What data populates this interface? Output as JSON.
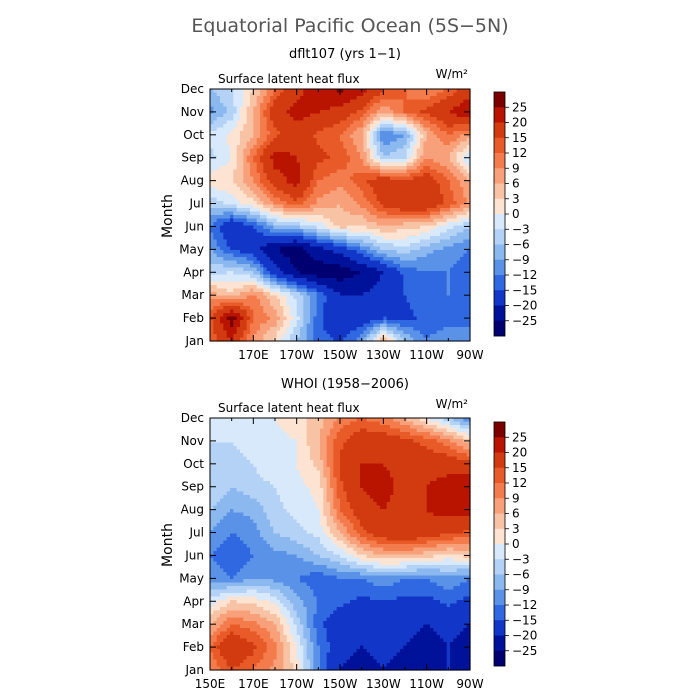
{
  "figure": {
    "title": "Equatorial Pacific Ocean (5S−5N)"
  },
  "colorbar": {
    "labels": [
      "25",
      "20",
      "15",
      "12",
      "9",
      "6",
      "3",
      "0",
      "−3",
      "−6",
      "−9",
      "−12",
      "−15",
      "−20",
      "−25"
    ],
    "colors": [
      "#7a0000",
      "#b81400",
      "#d23a10",
      "#e85a28",
      "#f47c4c",
      "#f7a07a",
      "#f8c2a4",
      "#fde3d2",
      "#d7e9fb",
      "#b4d2f5",
      "#8cb8f0",
      "#5a92e8",
      "#2f68e0",
      "#1236c8",
      "#00119a",
      "#000070"
    ]
  },
  "chart_data": [
    {
      "type": "heatmap",
      "title": "dflt107 (yrs 1−1)",
      "subtitle": "Surface latent heat flux",
      "units": "W/m²",
      "ylabel": "Month",
      "y_ticks": [
        "Jan",
        "Feb",
        "Mar",
        "Apr",
        "May",
        "Jun",
        "Jul",
        "Aug",
        "Sep",
        "Oct",
        "Nov",
        "Dec"
      ],
      "x_ticks": [
        "170E",
        "170W",
        "150W",
        "130W",
        "110W",
        "90W"
      ],
      "x_range": [
        "150E",
        "90W"
      ],
      "levels": [
        -25,
        -20,
        -15,
        -12,
        -9,
        -6,
        -3,
        0,
        3,
        6,
        9,
        12,
        15,
        20,
        25
      ],
      "lon": [
        150,
        160,
        170,
        180,
        190,
        200,
        210,
        220,
        230,
        240,
        250,
        260,
        270
      ],
      "months": [
        "Jan",
        "Feb",
        "Mar",
        "Apr",
        "May",
        "Jun",
        "Jul",
        "Aug",
        "Sep",
        "Oct",
        "Nov",
        "Dec"
      ],
      "values": [
        [
          12,
          20,
          8,
          2,
          -6,
          -14,
          -15,
          -10,
          6,
          -6,
          -12,
          -9,
          -10
        ],
        [
          14,
          28,
          12,
          8,
          -2,
          -14,
          -20,
          -18,
          -15,
          -16,
          -14,
          -14,
          -13
        ],
        [
          8,
          4,
          10,
          3,
          -4,
          -12,
          -20,
          -20,
          -18,
          -15,
          -13,
          -12,
          -14
        ],
        [
          -4,
          -3,
          -6,
          -18,
          -25,
          -28,
          -28,
          -25,
          -20,
          -14,
          -12,
          -12,
          -15
        ],
        [
          -9,
          -15,
          -18,
          -25,
          -28,
          -22,
          -18,
          -12,
          -6,
          -4,
          -8,
          -10,
          -12
        ],
        [
          -12,
          -20,
          -15,
          -8,
          -6,
          -2,
          4,
          3,
          6,
          4,
          3,
          -2,
          -6
        ],
        [
          -5,
          -2,
          2,
          9,
          14,
          8,
          6,
          10,
          16,
          20,
          20,
          14,
          8
        ],
        [
          2,
          3,
          9,
          18,
          22,
          12,
          10,
          14,
          18,
          16,
          18,
          12,
          6
        ],
        [
          -4,
          0,
          12,
          22,
          20,
          16,
          14,
          9,
          -6,
          -3,
          9,
          6,
          -4
        ],
        [
          -2,
          1,
          6,
          14,
          18,
          14,
          12,
          6,
          -12,
          -9,
          6,
          12,
          8
        ],
        [
          -10,
          -5,
          6,
          18,
          22,
          20,
          18,
          14,
          6,
          12,
          16,
          20,
          24
        ],
        [
          -6,
          -3,
          3,
          12,
          18,
          24,
          26,
          22,
          16,
          12,
          9,
          12,
          18
        ]
      ]
    },
    {
      "type": "heatmap",
      "title": "WHOI (1958−2006)",
      "subtitle": "Surface latent heat flux",
      "units": "W/m²",
      "ylabel": "Month",
      "y_ticks": [
        "Jan",
        "Feb",
        "Mar",
        "Apr",
        "May",
        "Jun",
        "Jul",
        "Aug",
        "Sep",
        "Oct",
        "Nov",
        "Dec"
      ],
      "x_ticks": [
        "150E",
        "170E",
        "170W",
        "150W",
        "130W",
        "110W",
        "90W"
      ],
      "x_range": [
        "150E",
        "90W"
      ],
      "levels": [
        -25,
        -20,
        -15,
        -12,
        -9,
        -6,
        -3,
        0,
        3,
        6,
        9,
        12,
        15,
        20,
        25
      ],
      "lon": [
        150,
        160,
        170,
        180,
        190,
        200,
        210,
        220,
        230,
        240,
        250,
        260,
        270
      ],
      "months": [
        "Jan",
        "Feb",
        "Mar",
        "Apr",
        "May",
        "Jun",
        "Jul",
        "Aug",
        "Sep",
        "Oct",
        "Nov",
        "Dec"
      ],
      "values": [
        [
          9,
          15,
          12,
          8,
          2,
          -12,
          -20,
          -22,
          -20,
          -22,
          -24,
          -20,
          -22
        ],
        [
          12,
          20,
          16,
          10,
          0,
          -12,
          -18,
          -20,
          -18,
          -20,
          -22,
          -20,
          -22
        ],
        [
          6,
          12,
          10,
          6,
          -4,
          -14,
          -18,
          -20,
          -18,
          -18,
          -20,
          -18,
          -20
        ],
        [
          -2,
          3,
          2,
          -1,
          -8,
          -12,
          -14,
          -16,
          -15,
          -16,
          -16,
          -14,
          -16
        ],
        [
          -10,
          -12,
          -9,
          -10,
          -12,
          -14,
          -12,
          -12,
          -10,
          -12,
          -12,
          -10,
          -12
        ],
        [
          -12,
          -15,
          -12,
          -10,
          -9,
          -6,
          -3,
          3,
          6,
          6,
          4,
          2,
          4
        ],
        [
          -9,
          -12,
          -10,
          -6,
          -4,
          -2,
          6,
          14,
          18,
          20,
          18,
          16,
          14
        ],
        [
          -6,
          -9,
          -8,
          -4,
          -2,
          0,
          12,
          18,
          20,
          18,
          20,
          22,
          22
        ],
        [
          -3,
          -6,
          -4,
          -3,
          -1,
          1,
          14,
          20,
          22,
          18,
          20,
          22,
          24
        ],
        [
          -3,
          -4,
          -3,
          -1,
          0,
          4,
          16,
          20,
          20,
          18,
          18,
          18,
          16
        ],
        [
          -3,
          -3,
          -2,
          -1,
          0,
          6,
          14,
          18,
          18,
          16,
          14,
          10,
          4
        ],
        [
          -2,
          -2,
          -1,
          0,
          2,
          4,
          10,
          12,
          10,
          6,
          0,
          -6,
          -12
        ]
      ]
    }
  ]
}
